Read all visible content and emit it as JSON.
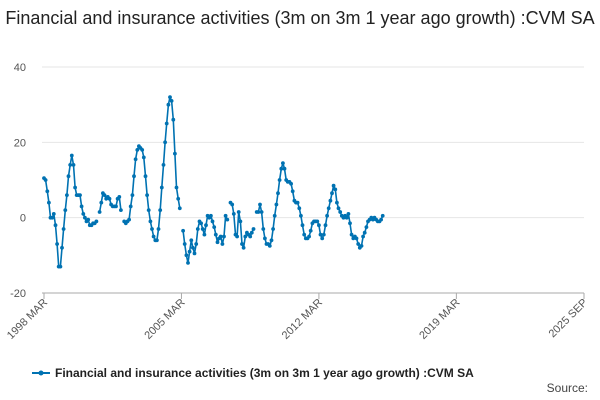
{
  "chart_data": {
    "type": "line",
    "title": "Financial and insurance activities (3m on 3m 1 year ago growth) :CVM SA",
    "xlabel": "",
    "ylabel": "",
    "ylim": [
      -20,
      40
    ],
    "yticks": [
      "40",
      "20",
      "0",
      "-20"
    ],
    "xticks": [
      "1998 MAR",
      "2005 MAR",
      "2012 MAR",
      "2019 MAR",
      "2025 SEP"
    ],
    "x_range": [
      "1998 MAR",
      "2025 SEP"
    ],
    "grid": true,
    "legend_position": "bottom",
    "series": [
      {
        "name": "Financial and insurance activities (3m on 3m 1 year ago growth) :CVM SA",
        "color": "#0072b2",
        "points": [
          [
            "1998 MAR",
            10.5
          ],
          [
            "1998 APR",
            10.0
          ],
          [
            "1998 MAY",
            7.0
          ],
          [
            "1998 JUN",
            4.0
          ],
          [
            "1998 JUL",
            0.0
          ],
          [
            "1998 AUG",
            0.0
          ],
          [
            "1998 SEP",
            1.0
          ],
          [
            "1998 OCT",
            -2.0
          ],
          [
            "1998 NOV",
            -7.0
          ],
          [
            "1998 DEC",
            -13.0
          ],
          [
            "1999 JAN",
            -13.0
          ],
          [
            "1999 FEB",
            -8.0
          ],
          [
            "1999 MAR",
            -3.0
          ],
          [
            "1999 APR",
            2.0
          ],
          [
            "1999 MAY",
            6.0
          ],
          [
            "1999 JUN",
            11.0
          ],
          [
            "1999 JUL",
            14.0
          ],
          [
            "1999 AUG",
            16.5
          ],
          [
            "1999 SEP",
            14.0
          ],
          [
            "1999 OCT",
            8.0
          ],
          [
            "1999 NOV",
            6.0
          ],
          [
            "1999 DEC",
            6.0
          ],
          [
            "2000 JAN",
            6.0
          ],
          [
            "2000 FEB",
            3.0
          ],
          [
            "2000 MAR",
            1.0
          ],
          [
            "2000 APR",
            0.0
          ],
          [
            "2000 MAY",
            -1.0
          ],
          [
            "2000 JUN",
            -0.5
          ],
          [
            "2000 JUL",
            -2.0
          ],
          [
            "2000 AUG",
            -2.0
          ],
          [
            "2000 SEP",
            -1.5
          ],
          [
            "2000 OCT",
            -1.5
          ],
          [
            "2000 NOV",
            -1.0
          ],
          [
            "2000 DEC",
            null
          ],
          [
            "2001 JAN",
            1.5
          ],
          [
            "2001 FEB",
            4.0
          ],
          [
            "2001 MAR",
            6.5
          ],
          [
            "2001 APR",
            6.0
          ],
          [
            "2001 MAY",
            5.0
          ],
          [
            "2001 JUN",
            5.5
          ],
          [
            "2001 JUL",
            5.0
          ],
          [
            "2001 AUG",
            3.5
          ],
          [
            "2001 SEP",
            3.0
          ],
          [
            "2001 OCT",
            3.0
          ],
          [
            "2001 NOV",
            3.0
          ],
          [
            "2001 DEC",
            5.0
          ],
          [
            "2002 JAN",
            5.5
          ],
          [
            "2002 FEB",
            2.0
          ],
          [
            "2002 MAR",
            null
          ],
          [
            "2002 APR",
            -1.0
          ],
          [
            "2002 MAY",
            -1.5
          ],
          [
            "2002 JUN",
            -1.0
          ],
          [
            "2002 JUL",
            -0.5
          ],
          [
            "2002 AUG",
            3.0
          ],
          [
            "2002 SEP",
            6.0
          ],
          [
            "2002 OCT",
            11.0
          ],
          [
            "2002 NOV",
            15.5
          ],
          [
            "2002 DEC",
            18.0
          ],
          [
            "2003 JAN",
            19.0
          ],
          [
            "2003 FEB",
            18.5
          ],
          [
            "2003 MAR",
            18.0
          ],
          [
            "2003 APR",
            16.0
          ],
          [
            "2003 MAY",
            11.0
          ],
          [
            "2003 JUN",
            6.0
          ],
          [
            "2003 JUL",
            2.0
          ],
          [
            "2003 AUG",
            -1.0
          ],
          [
            "2003 SEP",
            -3.0
          ],
          [
            "2003 OCT",
            -5.0
          ],
          [
            "2003 NOV",
            -6.0
          ],
          [
            "2003 DEC",
            -6.0
          ],
          [
            "2004 JAN",
            -3.0
          ],
          [
            "2004 FEB",
            2.0
          ],
          [
            "2004 MAR",
            8.0
          ],
          [
            "2004 APR",
            14.0
          ],
          [
            "2004 MAY",
            20.0
          ],
          [
            "2004 JUN",
            25.0
          ],
          [
            "2004 JUL",
            30.0
          ],
          [
            "2004 AUG",
            32.0
          ],
          [
            "2004 SEP",
            31.0
          ],
          [
            "2004 OCT",
            26.0
          ],
          [
            "2004 NOV",
            17.0
          ],
          [
            "2004 DEC",
            8.0
          ],
          [
            "2005 JAN",
            5.0
          ],
          [
            "2005 FEB",
            2.5
          ],
          [
            "2005 MAR",
            null
          ],
          [
            "2005 APR",
            -3.5
          ],
          [
            "2005 MAY",
            -7.0
          ],
          [
            "2005 JUN",
            -10.0
          ],
          [
            "2005 JUL",
            -12.0
          ],
          [
            "2005 AUG",
            -9.0
          ],
          [
            "2005 SEP",
            -6.0
          ],
          [
            "2005 OCT",
            -8.0
          ],
          [
            "2005 NOV",
            -9.5
          ],
          [
            "2005 DEC",
            -7.0
          ],
          [
            "2006 JAN",
            -3.0
          ],
          [
            "2006 FEB",
            -1.0
          ],
          [
            "2006 MAR",
            -1.5
          ],
          [
            "2006 APR",
            -3.0
          ],
          [
            "2006 MAY",
            -4.5
          ],
          [
            "2006 JUN",
            -2.0
          ],
          [
            "2006 JUL",
            0.5
          ],
          [
            "2006 AUG",
            0.0
          ],
          [
            "2006 SEP",
            0.5
          ],
          [
            "2006 OCT",
            -1.0
          ],
          [
            "2006 NOV",
            -2.5
          ],
          [
            "2006 DEC",
            -4.5
          ],
          [
            "2007 JAN",
            -6.5
          ],
          [
            "2007 FEB",
            -5.5
          ],
          [
            "2007 MAR",
            -5.0
          ],
          [
            "2007 APR",
            -7.0
          ],
          [
            "2007 MAY",
            -5.0
          ],
          [
            "2007 JUN",
            0.5
          ],
          [
            "2007 JUL",
            -0.5
          ],
          [
            "2007 AUG",
            null
          ],
          [
            "2007 SEP",
            4.0
          ],
          [
            "2007 OCT",
            3.5
          ],
          [
            "2007 NOV",
            1.0
          ],
          [
            "2007 DEC",
            -4.5
          ],
          [
            "2008 JAN",
            -5.0
          ],
          [
            "2008 FEB",
            1.5
          ],
          [
            "2008 MAR",
            -1.0
          ],
          [
            "2008 APR",
            -7.0
          ],
          [
            "2008 MAY",
            -8.0
          ],
          [
            "2008 JUN",
            -5.0
          ],
          [
            "2008 JUL",
            -4.0
          ],
          [
            "2008 AUG",
            -4.5
          ],
          [
            "2008 SEP",
            -5.0
          ],
          [
            "2008 OCT",
            -4.0
          ],
          [
            "2008 NOV",
            -3.0
          ],
          [
            "2008 DEC",
            null
          ],
          [
            "2009 JAN",
            1.5
          ],
          [
            "2009 FEB",
            1.5
          ],
          [
            "2009 MAR",
            3.5
          ],
          [
            "2009 APR",
            1.5
          ],
          [
            "2009 MAY",
            -3.0
          ],
          [
            "2009 JUN",
            -5.5
          ],
          [
            "2009 JUL",
            -7.0
          ],
          [
            "2009 AUG",
            -7.0
          ],
          [
            "2009 SEP",
            -7.5
          ],
          [
            "2009 OCT",
            -6.0
          ],
          [
            "2009 NOV",
            -3.0
          ],
          [
            "2009 DEC",
            0.5
          ],
          [
            "2010 JAN",
            3.5
          ],
          [
            "2010 FEB",
            6.5
          ],
          [
            "2010 MAR",
            10.0
          ],
          [
            "2010 APR",
            13.0
          ],
          [
            "2010 MAY",
            14.5
          ],
          [
            "2010 JUN",
            13.0
          ],
          [
            "2010 JUL",
            10.0
          ],
          [
            "2010 AUG",
            9.5
          ],
          [
            "2010 SEP",
            9.5
          ],
          [
            "2010 OCT",
            9.0
          ],
          [
            "2010 NOV",
            7.0
          ],
          [
            "2010 DEC",
            4.5
          ],
          [
            "2011 JAN",
            4.0
          ],
          [
            "2011 FEB",
            4.0
          ],
          [
            "2011 MAR",
            2.5
          ],
          [
            "2011 APR",
            0.5
          ],
          [
            "2011 MAY",
            -2.0
          ],
          [
            "2011 JUN",
            -4.5
          ],
          [
            "2011 JUL",
            -5.5
          ],
          [
            "2011 AUG",
            -5.5
          ],
          [
            "2011 SEP",
            -5.0
          ],
          [
            "2011 OCT",
            -3.5
          ],
          [
            "2011 NOV",
            -1.5
          ],
          [
            "2011 DEC",
            -1.0
          ],
          [
            "2012 JAN",
            -1.0
          ],
          [
            "2012 FEB",
            -1.0
          ],
          [
            "2012 MAR",
            -2.0
          ],
          [
            "2012 APR",
            -4.5
          ],
          [
            "2012 MAY",
            -5.5
          ],
          [
            "2012 JUN",
            -4.5
          ],
          [
            "2012 JUL",
            -2.0
          ],
          [
            "2012 AUG",
            0.5
          ],
          [
            "2012 SEP",
            2.5
          ],
          [
            "2012 OCT",
            4.5
          ],
          [
            "2012 NOV",
            6.5
          ],
          [
            "2012 DEC",
            8.5
          ],
          [
            "2013 JAN",
            7.5
          ],
          [
            "2013 FEB",
            4.0
          ],
          [
            "2013 MAR",
            2.5
          ],
          [
            "2013 APR",
            1.5
          ],
          [
            "2013 MAY",
            0.5
          ],
          [
            "2013 JUN",
            0.0
          ],
          [
            "2013 JUL",
            0.5
          ],
          [
            "2013 AUG",
            0.0
          ],
          [
            "2013 SEP",
            1.0
          ],
          [
            "2013 OCT",
            -1.5
          ],
          [
            "2013 NOV",
            -4.5
          ],
          [
            "2013 DEC",
            -5.5
          ],
          [
            "2014 JAN",
            -5.0
          ],
          [
            "2014 FEB",
            -5.5
          ],
          [
            "2014 MAR",
            -7.0
          ],
          [
            "2014 APR",
            -8.0
          ],
          [
            "2014 MAY",
            -7.5
          ],
          [
            "2014 JUN",
            -5.0
          ],
          [
            "2014 JUL",
            -4.0
          ],
          [
            "2014 AUG",
            -2.5
          ],
          [
            "2014 SEP",
            -1.0
          ],
          [
            "2014 OCT",
            -0.5
          ],
          [
            "2014 NOV",
            0.0
          ],
          [
            "2014 DEC",
            -0.5
          ],
          [
            "2015 JAN",
            0.0
          ],
          [
            "2015 FEB",
            -0.5
          ],
          [
            "2015 MAR",
            -1.0
          ],
          [
            "2015 APR",
            -1.0
          ],
          [
            "2015 MAY",
            -0.5
          ],
          [
            "2015 JUN",
            0.5
          ]
        ]
      }
    ]
  },
  "legend": {
    "label": "Financial and insurance activities (3m on 3m 1 year ago growth) :CVM SA"
  },
  "footer": {
    "source_label": "Source:"
  }
}
